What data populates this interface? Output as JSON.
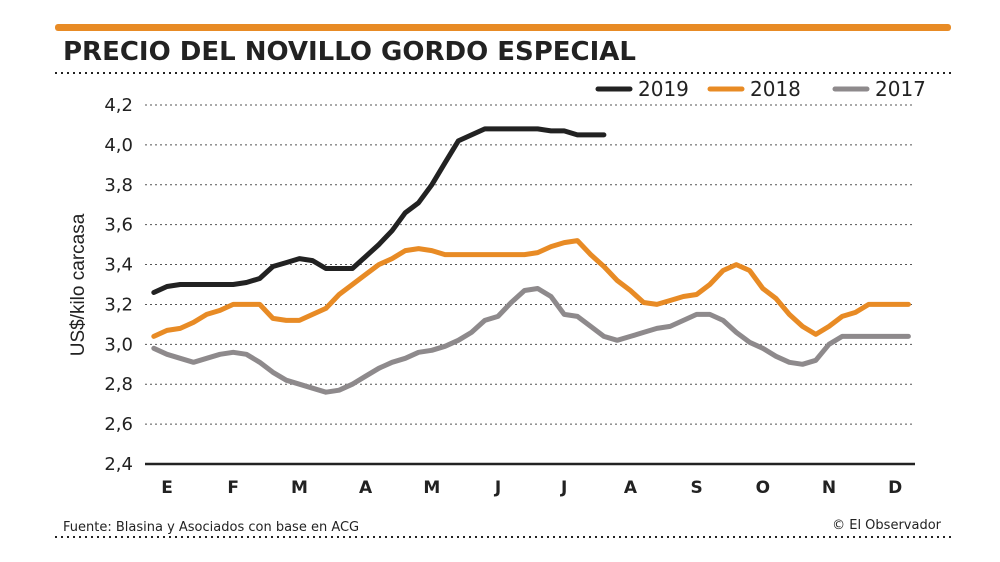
{
  "chart_data": {
    "type": "line",
    "title": "PRECIO DEL NOVILLO GORDO ESPECIAL",
    "ylabel": "US$/kilo carcasa",
    "xlabel": "",
    "categories": [
      "E",
      "F",
      "M",
      "A",
      "M",
      "J",
      "J",
      "A",
      "S",
      "O",
      "N",
      "D"
    ],
    "yticks": [
      "2,4",
      "2,6",
      "2,8",
      "3,0",
      "3,2",
      "3,4",
      "3,6",
      "3,8",
      "4,0",
      "4,2"
    ],
    "ylim": [
      2.4,
      4.2
    ],
    "xlim": [
      0,
      11
    ],
    "grid": true,
    "legend_position": "top-right",
    "series": [
      {
        "name": "2019",
        "color": "#222222",
        "x": [
          -0.2,
          0.0,
          0.2,
          0.4,
          0.8,
          1.0,
          1.2,
          1.4,
          1.6,
          1.8,
          2.0,
          2.2,
          2.4,
          2.6,
          2.8,
          3.0,
          3.2,
          3.4,
          3.6,
          3.8,
          4.0,
          4.2,
          4.4,
          4.6,
          4.8,
          5.0,
          5.2,
          5.4,
          5.6,
          5.8,
          6.0,
          6.2,
          6.4,
          6.6
        ],
        "y": [
          3.26,
          3.29,
          3.3,
          3.3,
          3.3,
          3.3,
          3.31,
          3.33,
          3.39,
          3.41,
          3.43,
          3.42,
          3.38,
          3.38,
          3.38,
          3.44,
          3.5,
          3.57,
          3.66,
          3.71,
          3.8,
          3.91,
          4.02,
          4.05,
          4.08,
          4.08,
          4.08,
          4.08,
          4.08,
          4.07,
          4.07,
          4.05,
          4.05,
          4.05
        ]
      },
      {
        "name": "2018",
        "color": "#e88b25",
        "x": [
          -0.2,
          0.0,
          0.2,
          0.4,
          0.6,
          0.8,
          1.0,
          1.2,
          1.4,
          1.6,
          1.8,
          2.0,
          2.2,
          2.4,
          2.6,
          2.8,
          3.0,
          3.2,
          3.4,
          3.6,
          3.8,
          4.0,
          4.2,
          4.4,
          4.6,
          4.8,
          5.0,
          5.2,
          5.4,
          5.6,
          5.8,
          6.0,
          6.2,
          6.4,
          6.6,
          6.8,
          7.0,
          7.2,
          7.4,
          7.6,
          7.8,
          8.0,
          8.2,
          8.4,
          8.6,
          8.8,
          9.0,
          9.2,
          9.4,
          9.6,
          9.8,
          10.0,
          10.2,
          10.4,
          10.6,
          10.8,
          11.0,
          11.2
        ],
        "y": [
          3.04,
          3.07,
          3.08,
          3.11,
          3.15,
          3.17,
          3.2,
          3.2,
          3.2,
          3.13,
          3.12,
          3.12,
          3.15,
          3.18,
          3.25,
          3.3,
          3.35,
          3.4,
          3.43,
          3.47,
          3.48,
          3.47,
          3.45,
          3.45,
          3.45,
          3.45,
          3.45,
          3.45,
          3.45,
          3.46,
          3.49,
          3.51,
          3.52,
          3.45,
          3.39,
          3.32,
          3.27,
          3.21,
          3.2,
          3.22,
          3.24,
          3.25,
          3.3,
          3.37,
          3.4,
          3.37,
          3.28,
          3.23,
          3.15,
          3.09,
          3.05,
          3.09,
          3.14,
          3.16,
          3.2,
          3.2,
          3.2,
          3.2
        ]
      },
      {
        "name": "2017",
        "color": "#8e8a8c",
        "x": [
          -0.2,
          0.0,
          0.2,
          0.4,
          0.6,
          0.8,
          1.0,
          1.2,
          1.4,
          1.6,
          1.8,
          2.0,
          2.2,
          2.4,
          2.6,
          2.8,
          3.0,
          3.2,
          3.4,
          3.6,
          3.8,
          4.0,
          4.2,
          4.4,
          4.6,
          4.8,
          5.0,
          5.2,
          5.4,
          5.6,
          5.8,
          6.0,
          6.2,
          6.4,
          6.6,
          6.8,
          7.0,
          7.2,
          7.4,
          7.6,
          7.8,
          8.0,
          8.2,
          8.4,
          8.6,
          8.8,
          9.0,
          9.2,
          9.4,
          9.6,
          9.8,
          10.0,
          10.2,
          10.4,
          10.6,
          10.8,
          11.0,
          11.2
        ],
        "y": [
          2.98,
          2.95,
          2.93,
          2.91,
          2.93,
          2.95,
          2.96,
          2.95,
          2.91,
          2.86,
          2.82,
          2.8,
          2.78,
          2.76,
          2.77,
          2.8,
          2.84,
          2.88,
          2.91,
          2.93,
          2.96,
          2.97,
          2.99,
          3.02,
          3.06,
          3.12,
          3.14,
          3.21,
          3.27,
          3.28,
          3.24,
          3.15,
          3.14,
          3.09,
          3.04,
          3.02,
          3.04,
          3.06,
          3.08,
          3.09,
          3.12,
          3.15,
          3.15,
          3.12,
          3.06,
          3.01,
          2.98,
          2.94,
          2.91,
          2.9,
          2.92,
          3.0,
          3.04,
          3.04,
          3.04,
          3.04,
          3.04,
          3.04
        ]
      }
    ]
  },
  "footer": {
    "source": "Fuente: Blasina y Asociados con base en ACG",
    "credit": "© El Observador"
  },
  "colors": {
    "accent_bar": "#e88b25",
    "grid": "#555555",
    "axis": "#222222"
  }
}
